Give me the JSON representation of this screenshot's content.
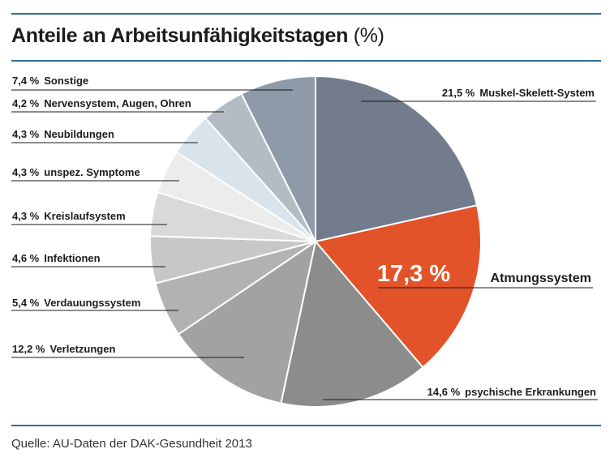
{
  "header": {
    "title": "Anteile an Arbeitsunfähigkeitstagen",
    "unit": "(%)"
  },
  "footer": {
    "source": "Quelle: AU-Daten der DAK-Gesundheit 2013"
  },
  "chart_data": {
    "type": "pie",
    "title": "Anteile an Arbeitsunfähigkeitstagen (%)",
    "unit": "%",
    "start": "12 o'clock, clockwise",
    "slices": [
      {
        "label": "Muskel-Skelett-System",
        "value": 21.5,
        "value_label": "21,5 %",
        "color": "#737c8c"
      },
      {
        "label": "Atmungssystem",
        "value": 17.3,
        "value_label": "17,3 %",
        "color": "#e2532a"
      },
      {
        "label": "psychische Erkrankungen",
        "value": 14.6,
        "value_label": "14,6 %",
        "color": "#8c8c8c"
      },
      {
        "label": "Verletzungen",
        "value": 12.2,
        "value_label": "12,2 %",
        "color": "#a2a2a2"
      },
      {
        "label": "Verdauungssystem",
        "value": 5.4,
        "value_label": "5,4 %",
        "color": "#b2b2b2"
      },
      {
        "label": "Infektionen",
        "value": 4.6,
        "value_label": "4,6 %",
        "color": "#c7c7c7"
      },
      {
        "label": "Kreislaufsystem",
        "value": 4.3,
        "value_label": "4,3 %",
        "color": "#d9d9d9"
      },
      {
        "label": "unspez. Symptome",
        "value": 4.3,
        "value_label": "4,3 %",
        "color": "#ececec"
      },
      {
        "label": "Neubildungen",
        "value": 4.3,
        "value_label": "4,3 %",
        "color": "#d8e3ec"
      },
      {
        "label": "Nervensystem, Augen, Ohren",
        "value": 4.2,
        "value_label": "4,2 %",
        "color": "#b3bcc5"
      },
      {
        "label": "Sonstige",
        "value": 7.4,
        "value_label": "7,4 %",
        "color": "#8e9aa8"
      }
    ]
  }
}
